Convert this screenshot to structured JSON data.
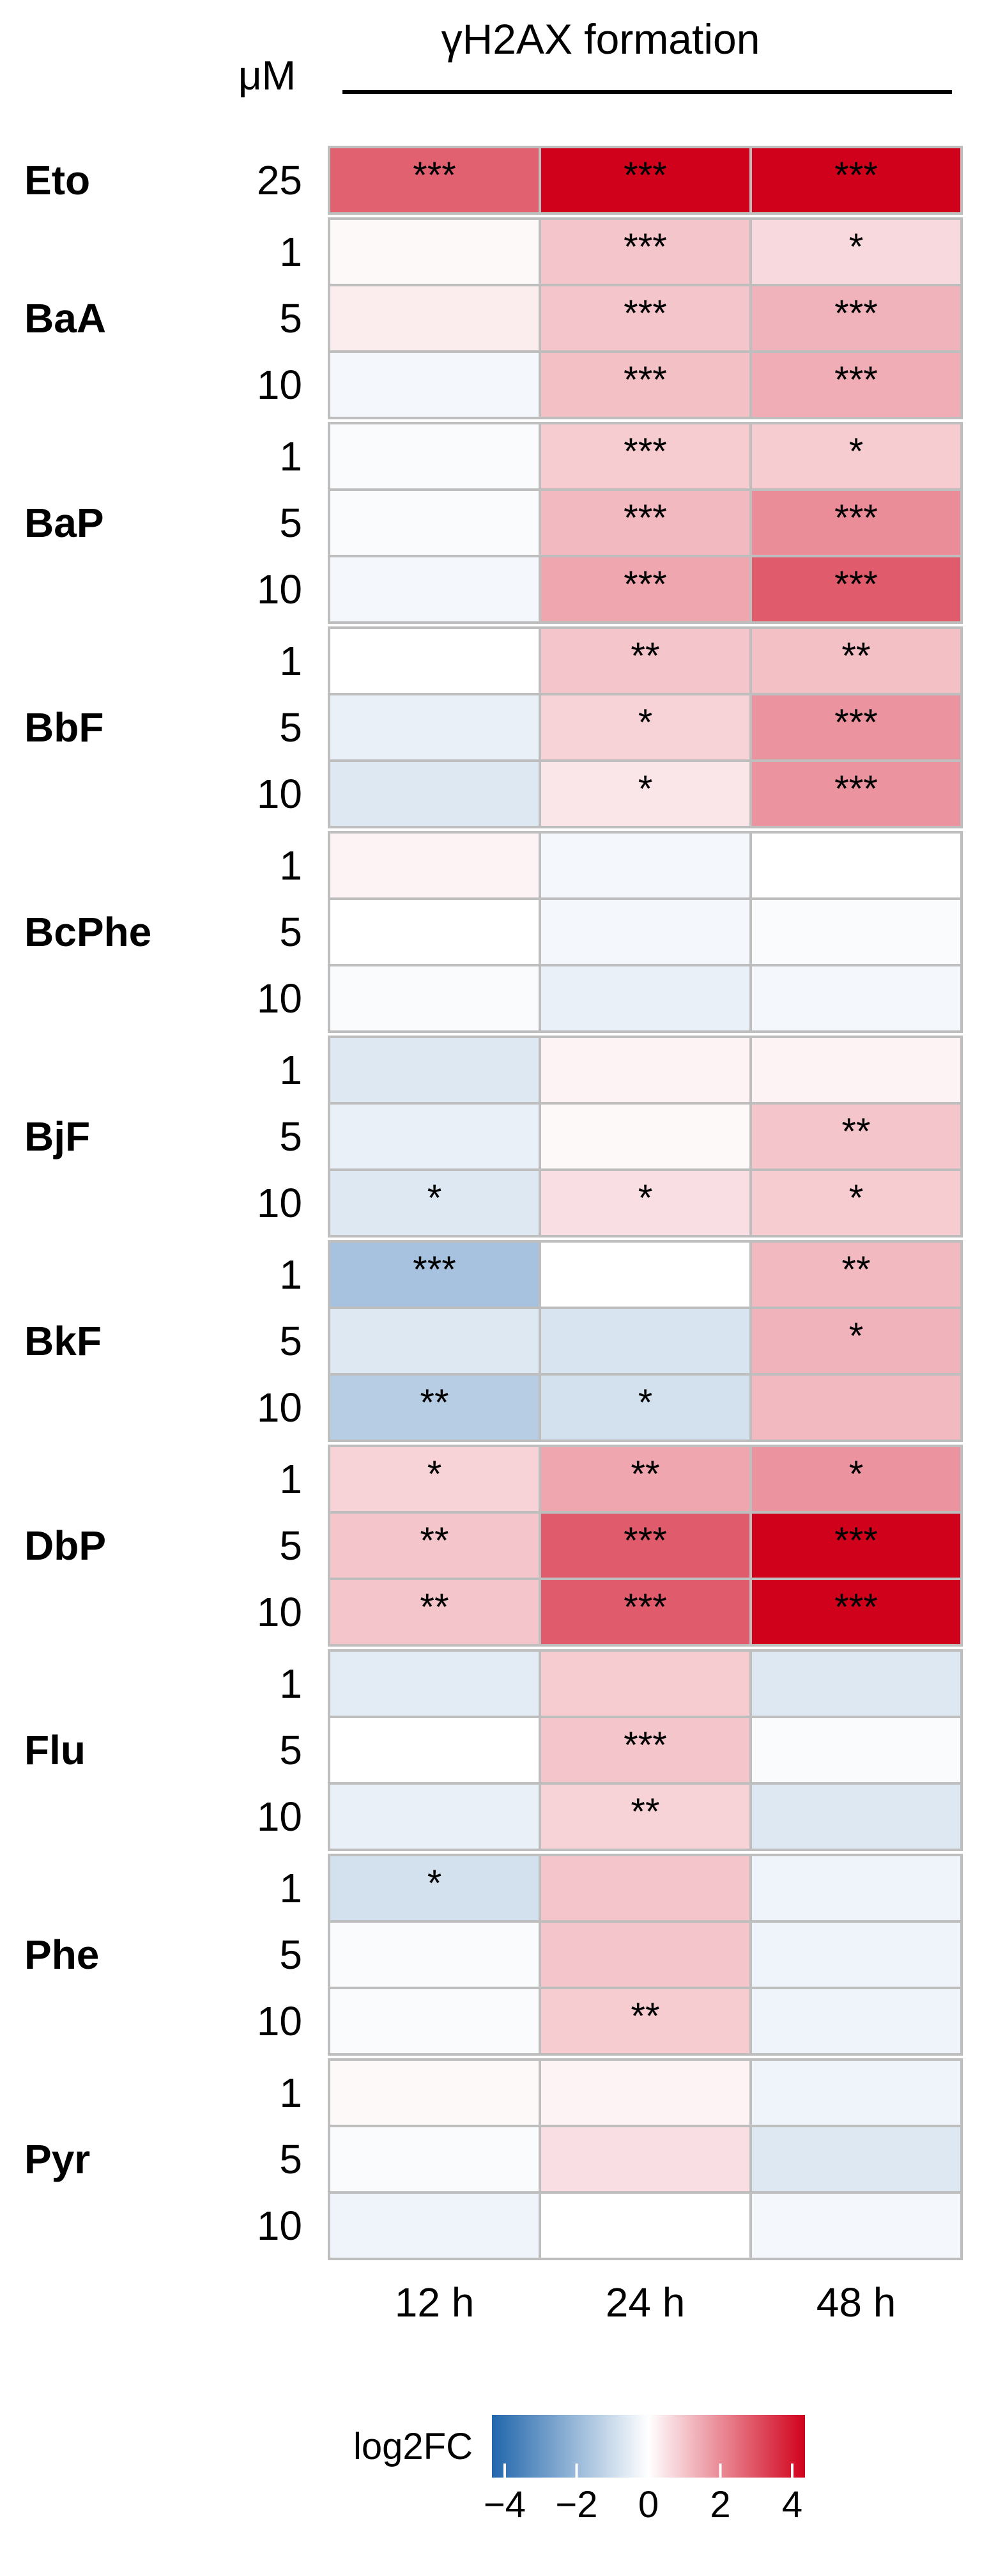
{
  "chart_data": {
    "type": "heatmap",
    "title": "γH2AX formation",
    "unit_label": "μM",
    "columns": [
      "12 h",
      "24 h",
      "48 h"
    ],
    "groups": [
      {
        "name": "Eto",
        "rows": [
          {
            "conc": "25",
            "values": [
              2.5,
              4.0,
              4.0
            ],
            "sig": [
              "***",
              "***",
              "***"
            ]
          }
        ]
      },
      {
        "name": "BaA",
        "rows": [
          {
            "conc": "1",
            "values": [
              0.1,
              0.9,
              0.6
            ],
            "sig": [
              "",
              "***",
              "*"
            ]
          },
          {
            "conc": "5",
            "values": [
              0.3,
              0.9,
              1.2
            ],
            "sig": [
              "",
              "***",
              "***"
            ]
          },
          {
            "conc": "10",
            "values": [
              -0.2,
              1.0,
              1.3
            ],
            "sig": [
              "",
              "***",
              "***"
            ]
          }
        ]
      },
      {
        "name": "BaP",
        "rows": [
          {
            "conc": "1",
            "values": [
              -0.1,
              0.8,
              0.8
            ],
            "sig": [
              "",
              "***",
              "*"
            ]
          },
          {
            "conc": "5",
            "values": [
              -0.1,
              1.1,
              1.8
            ],
            "sig": [
              "",
              "***",
              "***"
            ]
          },
          {
            "conc": "10",
            "values": [
              -0.2,
              1.4,
              2.6
            ],
            "sig": [
              "",
              "***",
              "***"
            ]
          }
        ]
      },
      {
        "name": "BbF",
        "rows": [
          {
            "conc": "1",
            "values": [
              0.0,
              0.9,
              1.0
            ],
            "sig": [
              "",
              "**",
              "**"
            ]
          },
          {
            "conc": "5",
            "values": [
              -0.4,
              0.7,
              1.7
            ],
            "sig": [
              "",
              "*",
              "***"
            ]
          },
          {
            "conc": "10",
            "values": [
              -0.6,
              0.4,
              1.7
            ],
            "sig": [
              "",
              "*",
              "***"
            ]
          }
        ]
      },
      {
        "name": "BcPhe",
        "rows": [
          {
            "conc": "1",
            "values": [
              0.2,
              -0.2,
              0.0
            ],
            "sig": [
              "",
              "",
              ""
            ]
          },
          {
            "conc": "5",
            "values": [
              0.0,
              -0.2,
              -0.1
            ],
            "sig": [
              "",
              "",
              ""
            ]
          },
          {
            "conc": "10",
            "values": [
              -0.1,
              -0.4,
              -0.2
            ],
            "sig": [
              "",
              "",
              ""
            ]
          }
        ]
      },
      {
        "name": "BjF",
        "rows": [
          {
            "conc": "1",
            "values": [
              -0.6,
              0.2,
              0.2
            ],
            "sig": [
              "",
              "",
              ""
            ]
          },
          {
            "conc": "5",
            "values": [
              -0.4,
              0.1,
              0.9
            ],
            "sig": [
              "",
              "",
              "**"
            ]
          },
          {
            "conc": "10",
            "values": [
              -0.6,
              0.5,
              0.8
            ],
            "sig": [
              "*",
              "*",
              "*"
            ]
          }
        ]
      },
      {
        "name": "BkF",
        "rows": [
          {
            "conc": "1",
            "values": [
              -1.6,
              0.0,
              1.1
            ],
            "sig": [
              "***",
              "",
              "**"
            ]
          },
          {
            "conc": "5",
            "values": [
              -0.6,
              -0.7,
              1.2
            ],
            "sig": [
              "",
              "",
              "*"
            ]
          },
          {
            "conc": "10",
            "values": [
              -1.3,
              -0.8,
              1.1
            ],
            "sig": [
              "**",
              "*",
              ""
            ]
          }
        ]
      },
      {
        "name": "DbP",
        "rows": [
          {
            "conc": "1",
            "values": [
              0.7,
              1.4,
              1.7
            ],
            "sig": [
              "*",
              "**",
              "*"
            ]
          },
          {
            "conc": "5",
            "values": [
              0.9,
              2.6,
              4.0
            ],
            "sig": [
              "**",
              "***",
              "***"
            ]
          },
          {
            "conc": "10",
            "values": [
              0.9,
              2.6,
              4.0
            ],
            "sig": [
              "**",
              "***",
              "***"
            ]
          }
        ]
      },
      {
        "name": "Flu",
        "rows": [
          {
            "conc": "1",
            "values": [
              -0.5,
              0.8,
              -0.6
            ],
            "sig": [
              "",
              "",
              ""
            ]
          },
          {
            "conc": "5",
            "values": [
              0.0,
              0.9,
              -0.1
            ],
            "sig": [
              "",
              "***",
              ""
            ]
          },
          {
            "conc": "10",
            "values": [
              -0.4,
              0.7,
              -0.6
            ],
            "sig": [
              "",
              "**",
              ""
            ]
          }
        ]
      },
      {
        "name": "Phe",
        "rows": [
          {
            "conc": "1",
            "values": [
              -0.8,
              0.9,
              -0.3
            ],
            "sig": [
              "*",
              "",
              ""
            ]
          },
          {
            "conc": "5",
            "values": [
              -0.1,
              0.9,
              -0.3
            ],
            "sig": [
              "",
              "",
              ""
            ]
          },
          {
            "conc": "10",
            "values": [
              -0.1,
              0.8,
              -0.3
            ],
            "sig": [
              "",
              "**",
              ""
            ]
          }
        ]
      },
      {
        "name": "Pyr",
        "rows": [
          {
            "conc": "1",
            "values": [
              0.1,
              0.2,
              -0.3
            ],
            "sig": [
              "",
              "",
              ""
            ]
          },
          {
            "conc": "5",
            "values": [
              -0.1,
              0.5,
              -0.6
            ],
            "sig": [
              "",
              "",
              ""
            ]
          },
          {
            "conc": "10",
            "values": [
              -0.3,
              0.0,
              -0.2
            ],
            "sig": [
              "",
              "",
              ""
            ]
          }
        ]
      }
    ],
    "legend": {
      "title": "log2FC",
      "min": -4,
      "max": 4,
      "ticks": [
        "−4",
        "−2",
        "0",
        "2",
        "4"
      ],
      "colors": {
        "low": "#2166ac",
        "mid": "#ffffff",
        "high": "#d0021b"
      }
    },
    "cell_border_color": "#bebebe"
  }
}
